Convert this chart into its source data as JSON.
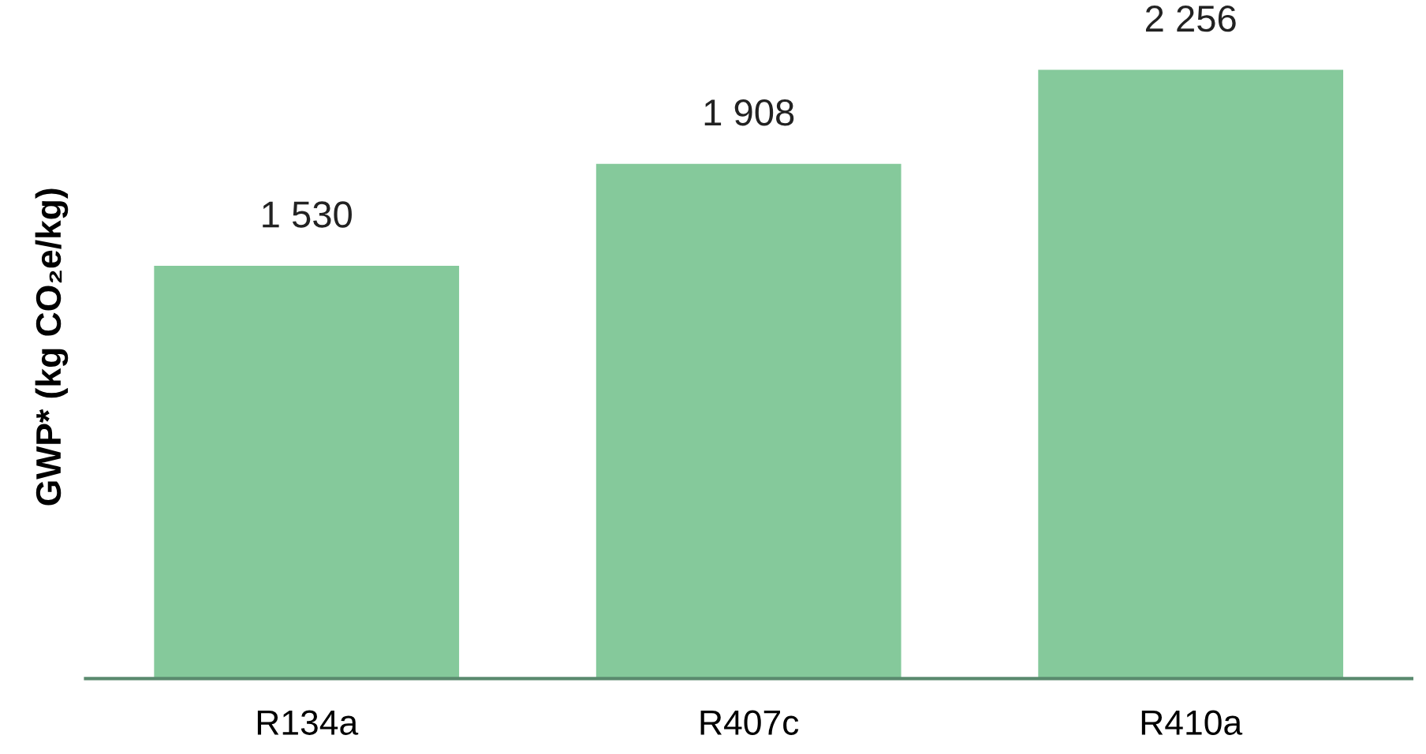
{
  "chart_data": {
    "type": "bar",
    "ylabel": "GWP* (kg CO₂e/kg)",
    "categories": [
      "R134a",
      "R407c",
      "R410a"
    ],
    "values": [
      1530,
      1908,
      2256
    ],
    "value_labels": [
      "1 530",
      "1 908",
      "2 256"
    ],
    "color": "#85c99b",
    "grid": false,
    "legend": false
  }
}
